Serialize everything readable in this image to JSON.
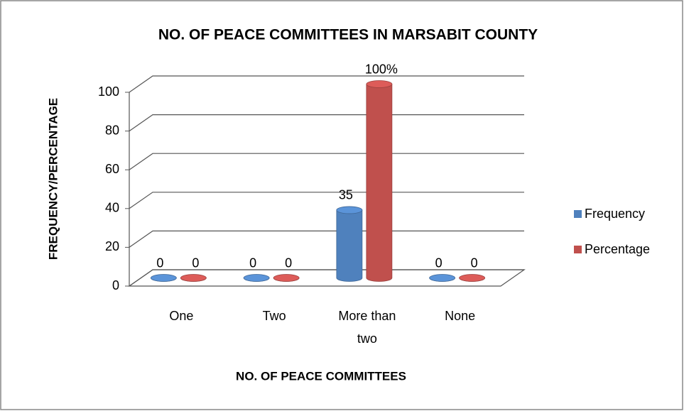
{
  "chart_data": {
    "type": "bar3d",
    "title": "NO. OF PEACE COMMITTEES IN MARSABIT COUNTY",
    "x_label": "NO. OF PEACE COMMITTEES",
    "y_label": "FREQUENCY/PERCENTAGE",
    "categories": [
      "One",
      "Two",
      "More than two",
      "None"
    ],
    "series": [
      {
        "name": "Frequency",
        "color": "#4f81bd",
        "values": [
          0,
          0,
          35,
          0
        ]
      },
      {
        "name": "Percentage",
        "color": "#c0504d",
        "values": [
          0,
          0,
          100,
          0
        ],
        "value_labels": [
          "0",
          "0",
          "100%",
          "0"
        ]
      }
    ],
    "ylim": [
      0,
      100
    ],
    "yticks": [
      0,
      20,
      40,
      60,
      80,
      100
    ],
    "grid": true,
    "legend": "right"
  }
}
